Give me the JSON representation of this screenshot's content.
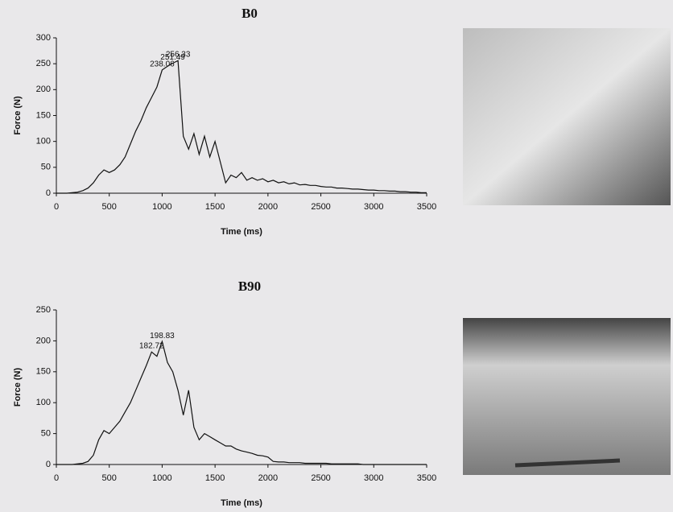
{
  "chart_data": [
    {
      "type": "line",
      "title": "B0",
      "x_label": "Time (ms)",
      "y_label": "Force (N)",
      "x": [
        0,
        50,
        100,
        150,
        200,
        250,
        300,
        350,
        400,
        450,
        500,
        550,
        600,
        650,
        700,
        750,
        800,
        850,
        900,
        950,
        1000,
        1050,
        1100,
        1150,
        1200,
        1250,
        1300,
        1350,
        1400,
        1450,
        1500,
        1550,
        1600,
        1650,
        1700,
        1750,
        1800,
        1850,
        1900,
        1950,
        2000,
        2050,
        2100,
        2150,
        2200,
        2250,
        2300,
        2350,
        2400,
        2450,
        2500,
        2550,
        2600,
        2650,
        2700,
        2750,
        2800,
        2850,
        2900,
        2950,
        3000,
        3050,
        3100,
        3150,
        3200,
        3250,
        3300,
        3350,
        3400,
        3450,
        3500
      ],
      "series": [
        {
          "color": "#111111",
          "values": [
            0,
            0,
            0,
            1,
            2,
            5,
            10,
            20,
            35,
            45,
            40,
            45,
            55,
            70,
            95,
            120,
            140,
            165,
            185,
            205,
            238,
            245,
            251,
            256,
            110,
            85,
            115,
            75,
            110,
            70,
            100,
            60,
            20,
            35,
            30,
            40,
            25,
            30,
            25,
            28,
            22,
            25,
            20,
            22,
            18,
            20,
            16,
            17,
            15,
            15,
            13,
            12,
            12,
            10,
            10,
            9,
            8,
            8,
            7,
            6,
            6,
            5,
            5,
            4,
            4,
            3,
            3,
            2,
            2,
            1,
            1
          ]
        }
      ],
      "annotations": [
        {
          "x": 1000,
          "y": 238.06
        },
        {
          "x": 1100,
          "y": 251.49
        },
        {
          "x": 1150,
          "y": 256.33
        }
      ],
      "xlim": [
        0,
        3500
      ],
      "xticks": [
        0,
        500,
        1000,
        1500,
        2000,
        2500,
        3000,
        3500
      ],
      "ylim": [
        0,
        300
      ],
      "yticks": [
        0,
        50,
        100,
        150,
        200,
        250,
        300
      ]
    },
    {
      "type": "line",
      "title": "B90",
      "x_label": "Time (ms)",
      "y_label": "Force (N)",
      "x": [
        0,
        50,
        100,
        150,
        200,
        250,
        300,
        350,
        400,
        450,
        500,
        550,
        600,
        650,
        700,
        750,
        800,
        850,
        900,
        950,
        1000,
        1050,
        1100,
        1150,
        1200,
        1250,
        1300,
        1350,
        1400,
        1450,
        1500,
        1550,
        1600,
        1650,
        1700,
        1750,
        1800,
        1850,
        1900,
        1950,
        2000,
        2050,
        2100,
        2150,
        2200,
        2250,
        2300,
        2350,
        2400,
        2450,
        2500,
        2550,
        2600,
        2650,
        2700,
        2750,
        2800,
        2850,
        2900,
        2950,
        3000,
        3050,
        3100,
        3150,
        3200,
        3250,
        3300,
        3350,
        3400,
        3450,
        3500
      ],
      "series": [
        {
          "color": "#111111",
          "values": [
            0,
            0,
            0,
            0,
            1,
            2,
            5,
            15,
            40,
            55,
            50,
            60,
            70,
            85,
            100,
            120,
            140,
            160,
            182,
            175,
            199,
            165,
            150,
            120,
            80,
            120,
            60,
            40,
            50,
            45,
            40,
            35,
            30,
            30,
            25,
            22,
            20,
            18,
            15,
            14,
            12,
            5,
            4,
            4,
            3,
            3,
            3,
            2,
            2,
            2,
            2,
            2,
            1,
            1,
            1,
            1,
            1,
            1,
            0,
            0,
            0,
            0,
            0,
            0,
            0,
            0,
            0,
            0,
            0,
            0,
            0
          ]
        }
      ],
      "annotations": [
        {
          "x": 900,
          "y": 182.72
        },
        {
          "x": 1000,
          "y": 198.83
        }
      ],
      "xlim": [
        0,
        3500
      ],
      "xticks": [
        0,
        500,
        1000,
        1500,
        2000,
        2500,
        3000,
        3500
      ],
      "ylim": [
        0,
        250
      ],
      "yticks": [
        0,
        50,
        100,
        150,
        200,
        250
      ]
    }
  ]
}
